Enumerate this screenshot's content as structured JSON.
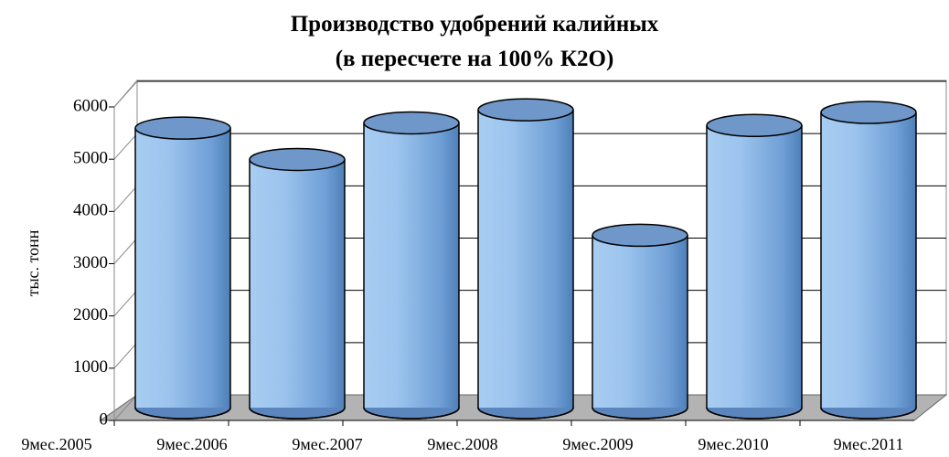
{
  "chart_data": {
    "type": "bar",
    "title": "Производство удобрений калийных",
    "subtitle": "(в пересчете на 100% К2О)",
    "y_label": "тыс. тонн",
    "categories": [
      "9мес.2005",
      "9мес.2006",
      "9мес.2007",
      "9мес.2008",
      "9мес.2009",
      "9мес.2010",
      "9мес.2011"
    ],
    "values": [
      5350,
      4750,
      5450,
      5700,
      3300,
      5400,
      5650
    ],
    "color": "#8db4e2",
    "ylim": [
      0,
      6000
    ],
    "yticks": [
      0,
      1000,
      2000,
      3000,
      4000,
      5000,
      6000
    ],
    "grid": true
  }
}
